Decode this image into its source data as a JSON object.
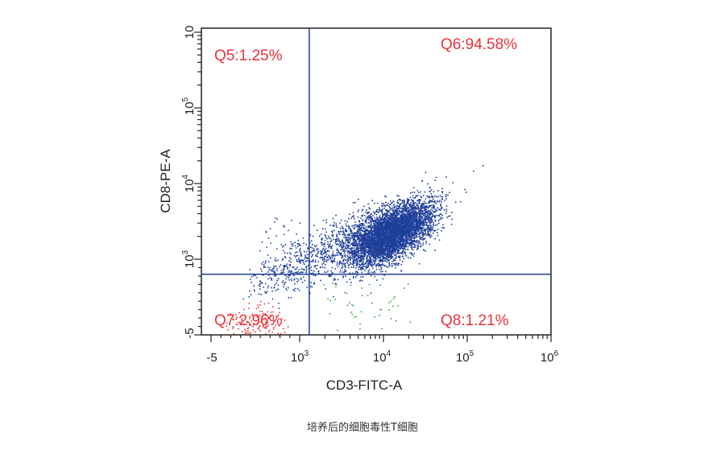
{
  "caption": "培养后的细胞毒性T细胞",
  "chart_data": {
    "type": "scatter",
    "xlabel": "CD3-FITC-A",
    "ylabel": "CD8-PE-A",
    "x_axis_scale": "biexponential",
    "y_axis_scale": "biexponential",
    "xlim": [
      -5,
      1000000
    ],
    "ylim": [
      -5,
      1000000
    ],
    "x_ticks": [
      {
        "base": "-5",
        "exp": ""
      },
      {
        "base": "10",
        "exp": "3"
      },
      {
        "base": "10",
        "exp": "4"
      },
      {
        "base": "10",
        "exp": "5"
      },
      {
        "base": "10",
        "exp": "6"
      }
    ],
    "y_ticks": [
      {
        "base": "-5",
        "exp": ""
      },
      {
        "base": "10",
        "exp": "3"
      },
      {
        "base": "10",
        "exp": "4"
      },
      {
        "base": "10",
        "exp": "5"
      },
      {
        "base": "10",
        "exp": ""
      }
    ],
    "gate": {
      "x": 1300,
      "y": 800
    },
    "quadrants": [
      {
        "name": "Q5",
        "label": "Q5:1.25%",
        "percent": 1.25,
        "position": "top-left"
      },
      {
        "name": "Q6",
        "label": "Q6:94.58%",
        "percent": 94.58,
        "position": "top-right"
      },
      {
        "name": "Q7",
        "label": "Q7:2.96%",
        "percent": 2.96,
        "position": "bottom-left"
      },
      {
        "name": "Q8",
        "label": "Q8:1.21%",
        "percent": 1.21,
        "position": "bottom-right"
      }
    ],
    "populations": [
      {
        "gate": "Q6",
        "color": "#1f3f99",
        "center_x": 12000,
        "center_y": 2200,
        "spread": "dense elliptical cluster"
      },
      {
        "gate": "Q5",
        "color": "#1f3f99",
        "center_x": 500,
        "center_y": 900,
        "spread": "sparse"
      },
      {
        "gate": "Q7",
        "color": "#e8333a",
        "center_x": 500,
        "center_y": 300,
        "spread": "small cluster"
      },
      {
        "gate": "Q8",
        "color": "#3aa83a",
        "center_x": 9000,
        "center_y": 300,
        "spread": "sparse"
      }
    ],
    "colors": {
      "axis": "#222222",
      "gate_line": "#2b4a9e",
      "quadrant_text": "#e8333a"
    }
  }
}
